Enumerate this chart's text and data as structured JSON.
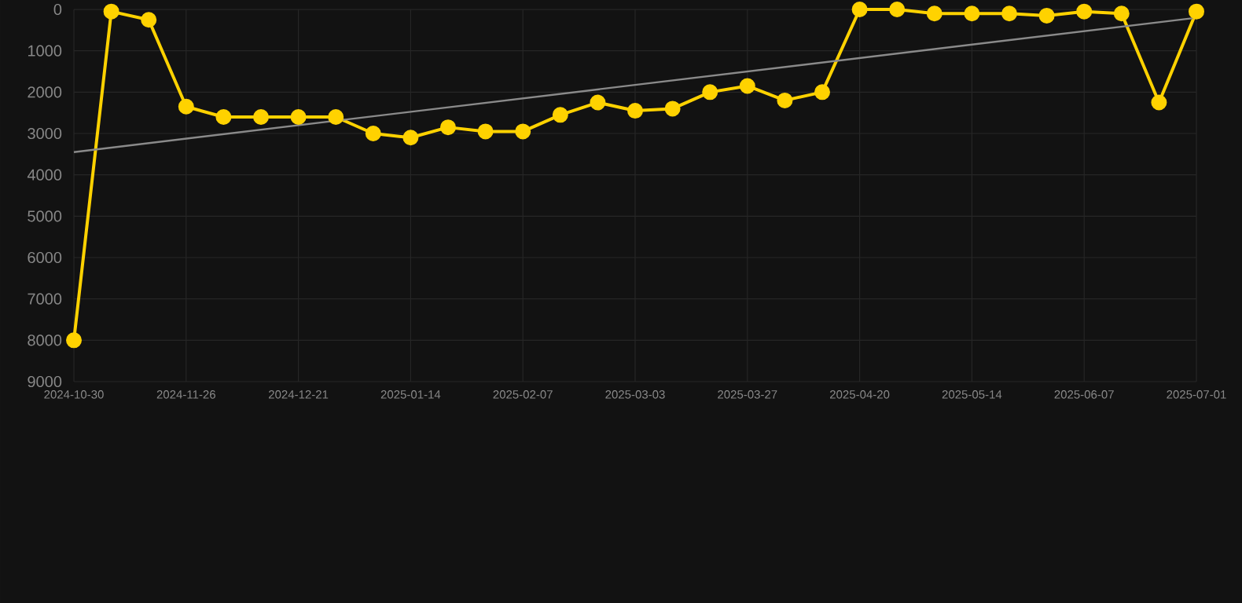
{
  "chart_data": {
    "type": "line",
    "categories": [
      "2024-10-30",
      null,
      null,
      "2024-11-26",
      null,
      null,
      "2024-12-21",
      null,
      null,
      "2025-01-14",
      null,
      null,
      "2025-02-07",
      null,
      null,
      "2025-03-03",
      null,
      null,
      "2025-03-27",
      null,
      null,
      "2025-04-20",
      null,
      null,
      "2025-05-14",
      null,
      null,
      "2025-06-07",
      null,
      null,
      "2025-07-01"
    ],
    "series": [
      {
        "color": "#ffd200",
        "marker": "circle",
        "values": [
          8000,
          50,
          250,
          2350,
          2600,
          2600,
          2600,
          2600,
          3000,
          3100,
          2850,
          2950,
          2950,
          2550,
          2250,
          2450,
          2400,
          2000,
          1850,
          2200,
          2000,
          0,
          0,
          100,
          100,
          100,
          150,
          50,
          100,
          2250,
          50
        ]
      },
      {
        "type": "line",
        "color": "#8a8a8a",
        "marker": "none",
        "values": [
          3450,
          null,
          null,
          null,
          null,
          null,
          null,
          null,
          null,
          null,
          null,
          null,
          null,
          null,
          null,
          null,
          null,
          null,
          null,
          null,
          null,
          null,
          null,
          null,
          null,
          null,
          null,
          null,
          null,
          null,
          200
        ]
      }
    ],
    "ylim": [
      9000,
      0
    ],
    "yticks": [
      0,
      1000,
      2000,
      3000,
      4000,
      5000,
      6000,
      7000,
      8000,
      9000
    ],
    "grid": true
  }
}
